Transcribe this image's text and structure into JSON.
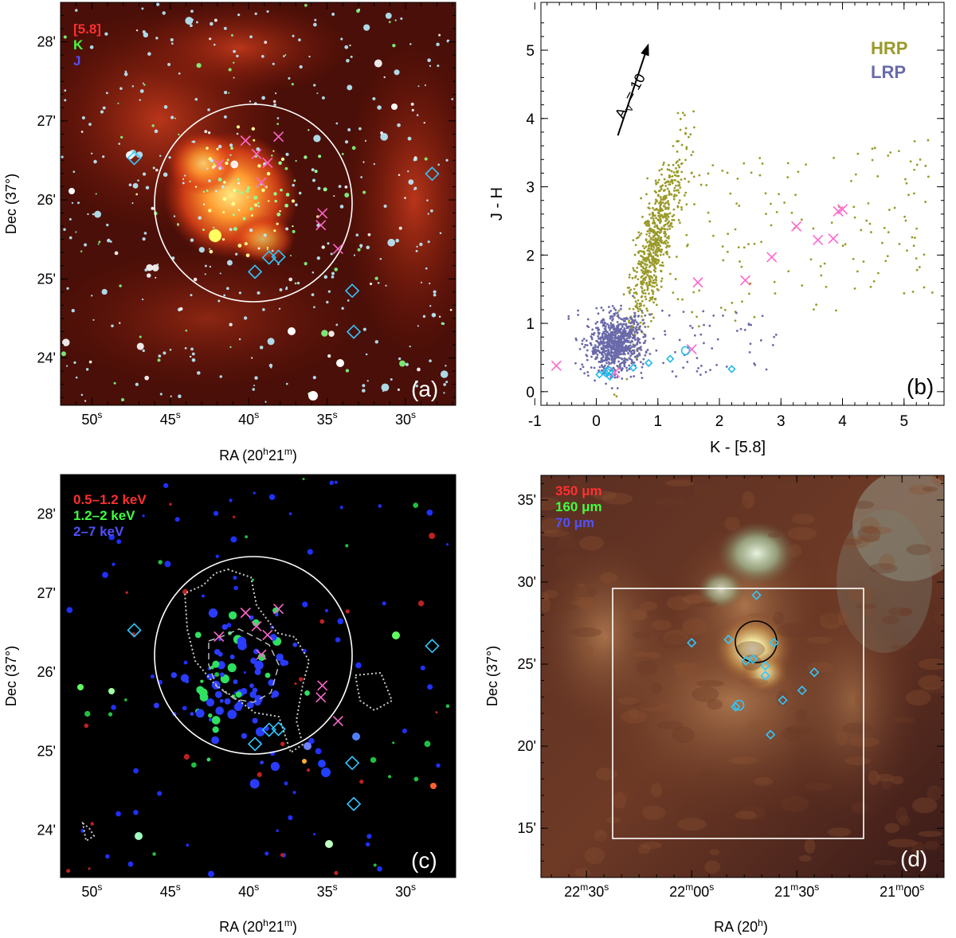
{
  "panels": {
    "a": {
      "label": "(a)",
      "legend": [
        {
          "text": "[5.8]",
          "color": "#ff3030"
        },
        {
          "text": "K",
          "color": "#40ff40"
        },
        {
          "text": "J",
          "color": "#5050ff"
        }
      ],
      "xlabel": "RA (20h21m)",
      "xlabel_parts": {
        "pre": "RA (20",
        "h": "h",
        "mid": "21",
        "m": "m",
        "post": ")"
      },
      "ylabel": "Dec (37°)",
      "xticks": [
        {
          "v": 50,
          "label": "50",
          "sup": "s"
        },
        {
          "v": 45,
          "label": "45",
          "sup": "s"
        },
        {
          "v": 40,
          "label": "40",
          "sup": "s"
        },
        {
          "v": 35,
          "label": "35",
          "sup": "s"
        },
        {
          "v": 30,
          "label": "30",
          "sup": "s"
        }
      ],
      "yticks": [
        {
          "v": 28,
          "label": "28'"
        },
        {
          "v": 27,
          "label": "27'"
        },
        {
          "v": 26,
          "label": "26'"
        },
        {
          "v": 25,
          "label": "25'"
        },
        {
          "v": 24,
          "label": "24'"
        }
      ]
    },
    "b": {
      "label": "(b)",
      "arrow_label": "A",
      "arrow_sub": "V",
      "arrow_value": " = 10"
    },
    "c": {
      "label": "(c)",
      "legend": [
        {
          "text": "0.5–1.2 keV",
          "color": "#ff3030"
        },
        {
          "text": "1.2–2 keV",
          "color": "#40ff40"
        },
        {
          "text": "2–7 keV",
          "color": "#5050ff"
        }
      ],
      "xlabel_parts": {
        "pre": "RA (20",
        "h": "h",
        "mid": "21",
        "m": "m",
        "post": ")"
      },
      "ylabel": "Dec (37°)"
    },
    "d": {
      "label": "(d)",
      "legend": [
        {
          "text": "350 μm",
          "color": "#ff3030"
        },
        {
          "text": "160 μm",
          "color": "#40ff40"
        },
        {
          "text": "70 μm",
          "color": "#5050ff"
        }
      ],
      "xlabel_parts": {
        "pre": "RA (20",
        "h": "h",
        "mid": "",
        "m": "",
        "post": ")"
      },
      "ylabel": "Dec (37°)",
      "xticks": [
        {
          "v": 150,
          "label": "22",
          "sup1": "m",
          "label2": "30",
          "sup2": "s"
        },
        {
          "v": 120,
          "label": "22",
          "sup1": "m",
          "label2": "00",
          "sup2": "s"
        },
        {
          "v": 90,
          "label": "21",
          "sup1": "m",
          "label2": "30",
          "sup2": "s"
        },
        {
          "v": 60,
          "label": "21",
          "sup1": "m",
          "label2": "00",
          "sup2": "s"
        }
      ],
      "yticks": [
        {
          "v": 35,
          "label": "35'"
        },
        {
          "v": 30,
          "label": "30'"
        },
        {
          "v": 25,
          "label": "25'"
        },
        {
          "v": 20,
          "label": "20'"
        },
        {
          "v": 15,
          "label": "15'"
        }
      ]
    }
  },
  "chart_data": [
    {
      "panel": "a",
      "type": "scatter",
      "title": "",
      "xlabel": "RA (20h21m)",
      "ylabel": "Dec (37°)",
      "xlim": [
        52,
        26.8
      ],
      "ylim": [
        23.4,
        28.5
      ],
      "circle": {
        "ra": 39.5,
        "dec": 26.15,
        "radius_arcmin": 1.25
      },
      "crosses": [
        {
          "ra": 40.2,
          "dec": 26.75
        },
        {
          "ra": 38.1,
          "dec": 26.8
        },
        {
          "ra": 39.5,
          "dec": 26.58
        },
        {
          "ra": 38.8,
          "dec": 26.47
        },
        {
          "ra": 39.2,
          "dec": 26.22
        },
        {
          "ra": 41.9,
          "dec": 26.45
        },
        {
          "ra": 35.3,
          "dec": 25.83
        },
        {
          "ra": 35.4,
          "dec": 25.68
        },
        {
          "ra": 34.3,
          "dec": 25.38
        }
      ],
      "diamonds": [
        {
          "ra": 47.3,
          "dec": 26.53
        },
        {
          "ra": 28.3,
          "dec": 26.33
        },
        {
          "ra": 33.4,
          "dec": 24.85
        },
        {
          "ra": 33.3,
          "dec": 24.33
        },
        {
          "ra": 39.6,
          "dec": 25.09
        },
        {
          "ra": 38.7,
          "dec": 25.27
        },
        {
          "ra": 38.1,
          "dec": 25.28
        }
      ]
    },
    {
      "panel": "b",
      "type": "scatter",
      "title": "",
      "xlabel": "K - [5.8]",
      "ylabel": "J - H",
      "xlim": [
        -0.9,
        5.65
      ],
      "ylim": [
        -0.2,
        5.7
      ],
      "xticks": [
        -1,
        0,
        1,
        2,
        3,
        4,
        5
      ],
      "yticks": [
        0,
        1,
        2,
        3,
        4,
        5
      ],
      "series": [
        {
          "name": "HRP",
          "color": "#9a9a2a",
          "note": "dense clump near (0.9, 2.2) plus scattered red excess sources"
        },
        {
          "name": "LRP",
          "color": "#6a6aaa",
          "note": "dense clump near (0.3, 0.7)"
        }
      ],
      "crosses": [
        {
          "x": -0.65,
          "y": 0.38
        },
        {
          "x": 0.3,
          "y": 0.28
        },
        {
          "x": 1.55,
          "y": 0.62
        },
        {
          "x": 1.65,
          "y": 1.6
        },
        {
          "x": 2.42,
          "y": 1.63
        },
        {
          "x": 2.85,
          "y": 1.97
        },
        {
          "x": 3.25,
          "y": 2.42
        },
        {
          "x": 3.6,
          "y": 2.22
        },
        {
          "x": 3.85,
          "y": 2.24
        },
        {
          "x": 3.93,
          "y": 2.64
        },
        {
          "x": 4.0,
          "y": 2.67
        }
      ],
      "diamonds": [
        {
          "x": 0.05,
          "y": 0.25
        },
        {
          "x": 0.15,
          "y": 0.27
        },
        {
          "x": 0.18,
          "y": 0.3
        },
        {
          "x": 0.22,
          "y": 0.22
        },
        {
          "x": 0.6,
          "y": 0.35
        },
        {
          "x": 0.85,
          "y": 0.42
        },
        {
          "x": 1.2,
          "y": 0.48
        },
        {
          "x": 2.2,
          "y": 0.33
        }
      ],
      "circles_open": [
        {
          "x": 1.45,
          "y": 0.6
        },
        {
          "x": 0.2,
          "y": 0.3
        }
      ],
      "reddening_vector": {
        "x0": 0.35,
        "y0": 3.75,
        "x1": 0.85,
        "y1": 5.1,
        "av": 10
      }
    },
    {
      "panel": "c",
      "type": "scatter",
      "title": "",
      "xlabel": "RA (20h21m)",
      "ylabel": "Dec (37°)",
      "xlim": [
        52,
        26.8
      ],
      "ylim": [
        23.4,
        28.5
      ]
    },
    {
      "panel": "d",
      "type": "scatter",
      "title": "",
      "xlabel": "RA (20h)",
      "ylabel": "Dec (37°)",
      "xlim": [
        163,
        48
      ],
      "ylim": [
        12,
        36.5
      ],
      "box": {
        "ra_min": 62,
        "ra_max": 146,
        "dec_min": 14.5,
        "dec_max": 29.5
      },
      "circle": {
        "ra": 103.5,
        "dec": 26.2,
        "radius_arcmin": 2.5
      },
      "diamonds": [
        {
          "ra": 120,
          "dec": 26.3
        },
        {
          "ra": 109.5,
          "dec": 26.5
        },
        {
          "ra": 101.5,
          "dec": 29.2
        },
        {
          "ra": 96.5,
          "dec": 26.3
        },
        {
          "ra": 99,
          "dec": 24.9
        },
        {
          "ra": 99,
          "dec": 24.3
        },
        {
          "ra": 104.5,
          "dec": 25.2
        },
        {
          "ra": 102.5,
          "dec": 25.3
        },
        {
          "ra": 85,
          "dec": 24.5
        },
        {
          "ra": 88.5,
          "dec": 23.4
        },
        {
          "ra": 94,
          "dec": 22.8
        },
        {
          "ra": 107.5,
          "dec": 22.4
        },
        {
          "ra": 97.5,
          "dec": 20.7
        }
      ],
      "circles_open": [
        {
          "ra": 106.5,
          "dec": 22.5
        }
      ]
    }
  ]
}
